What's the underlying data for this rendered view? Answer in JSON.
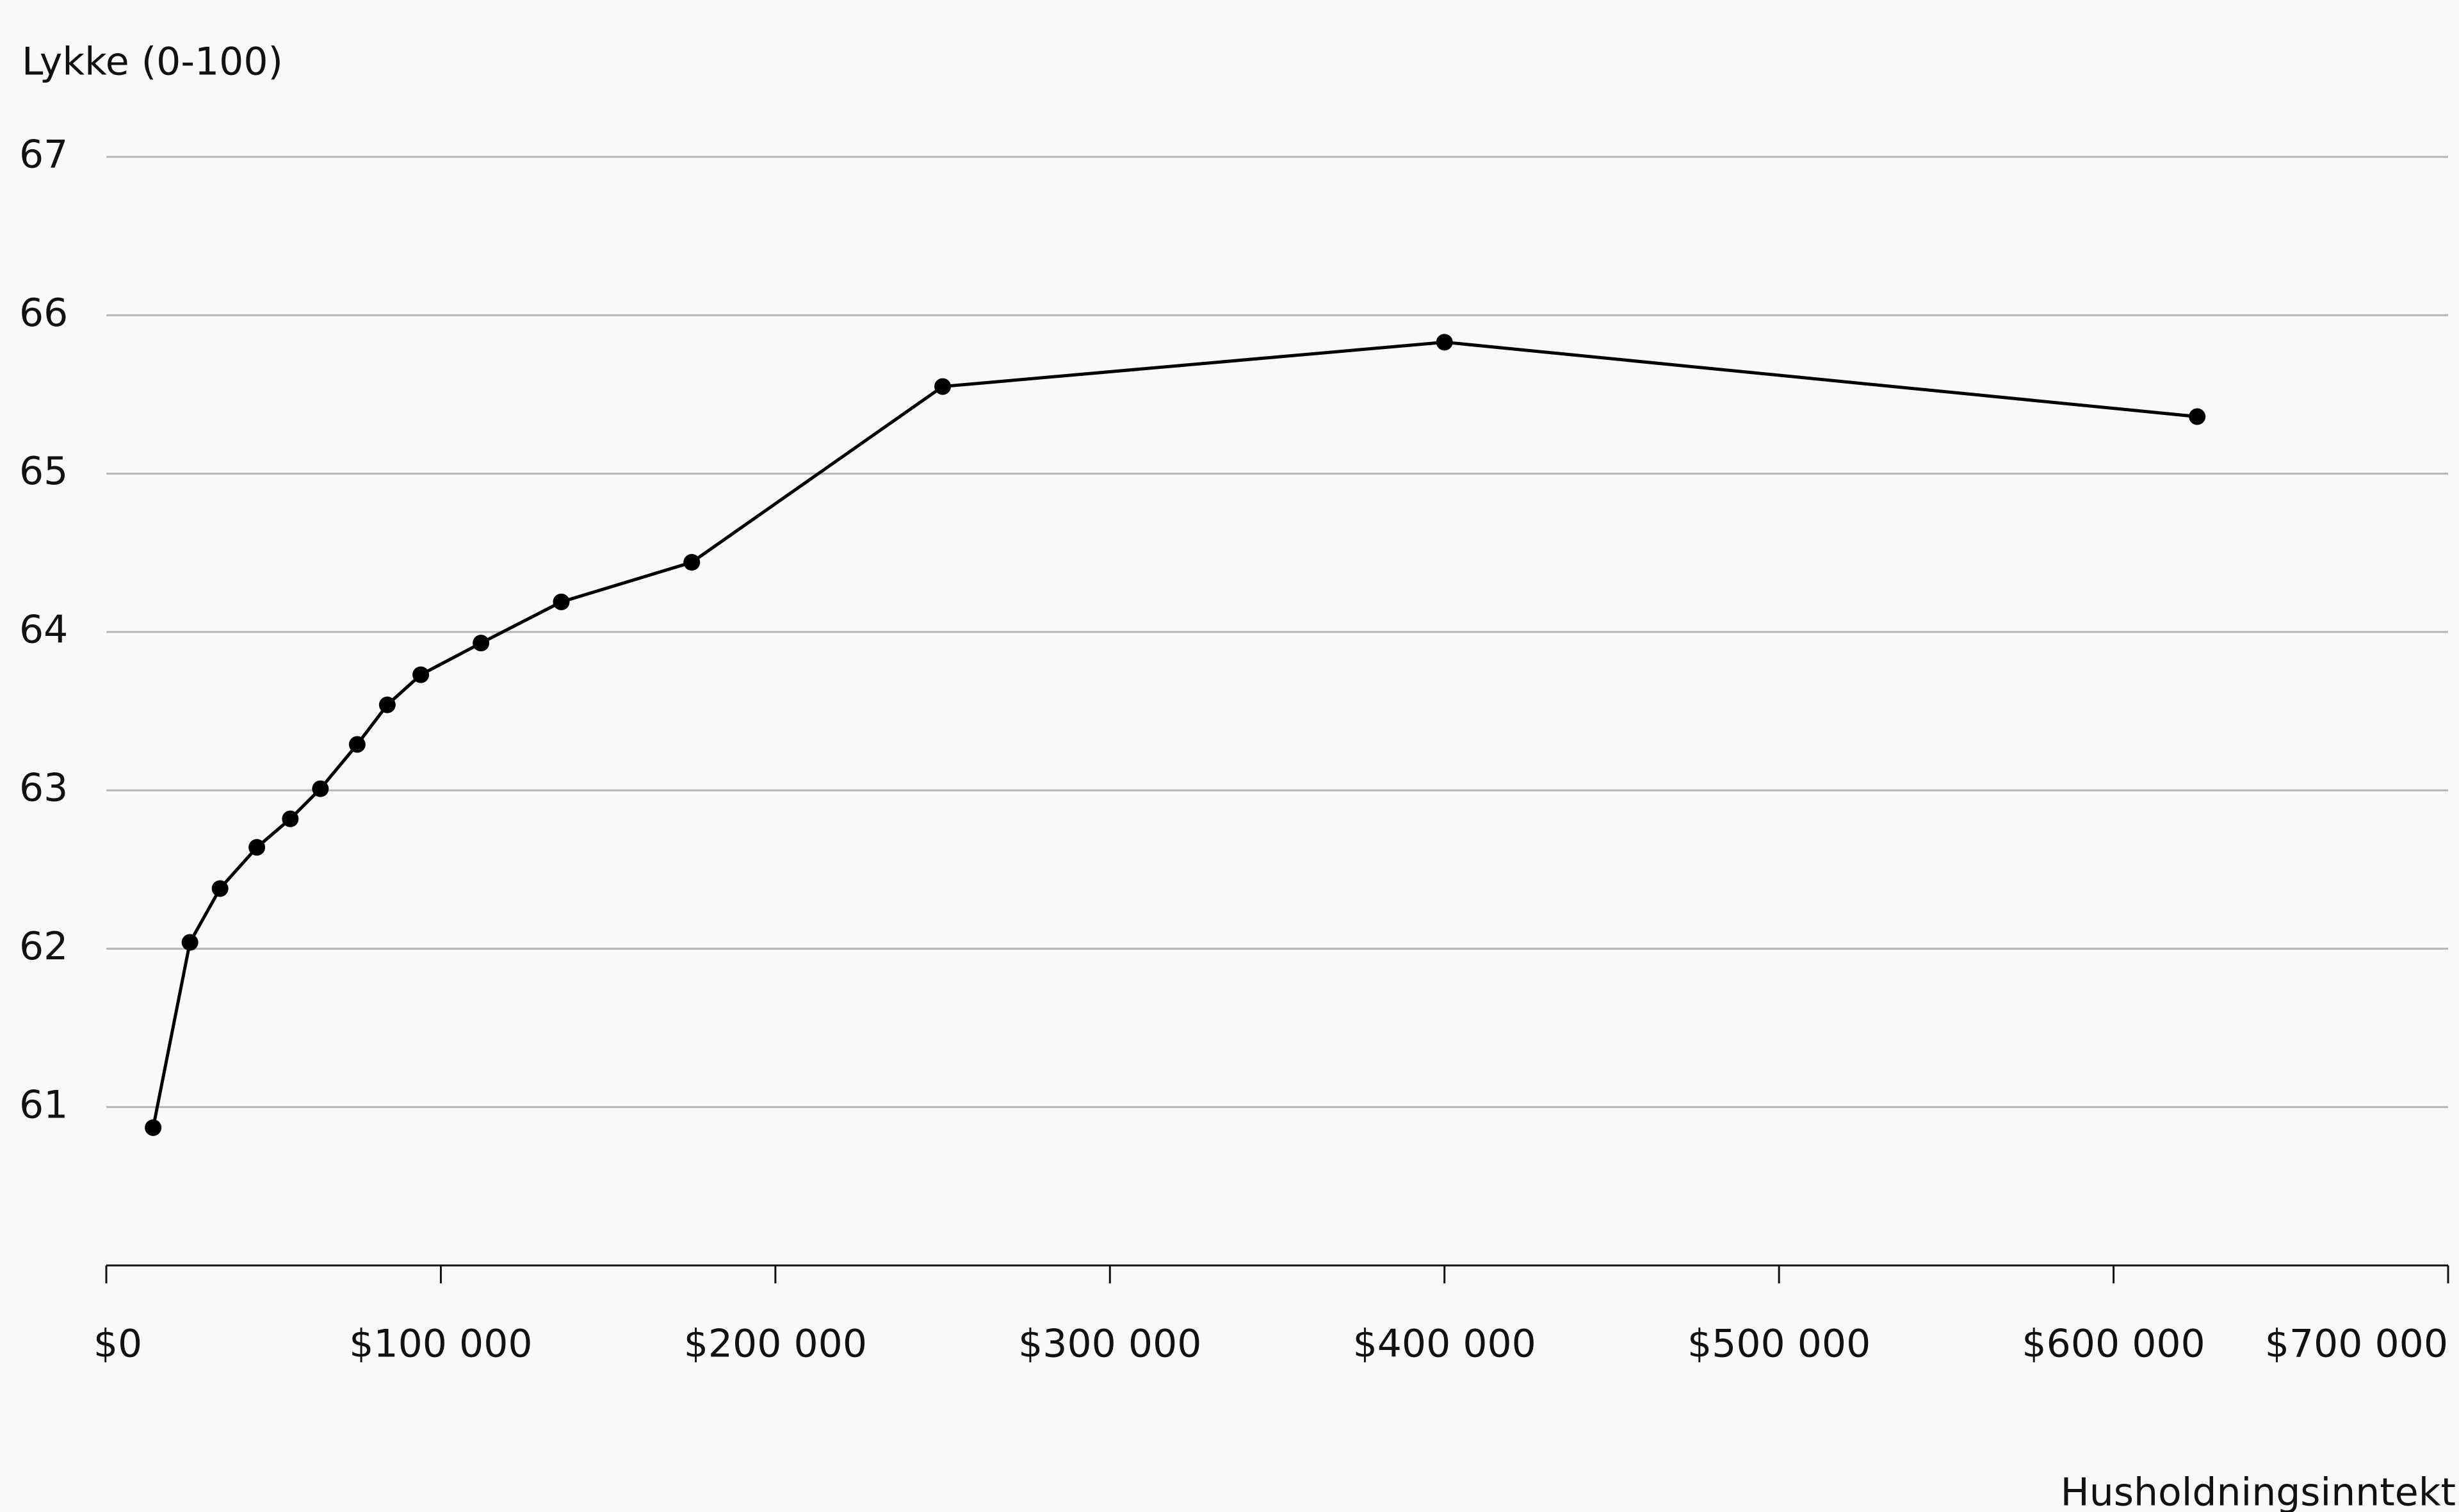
{
  "chart_data": {
    "type": "line",
    "y_label": "Lykke (0-100)",
    "x_label": "Husholdningsinntekt",
    "x": [
      14000,
      25000,
      34000,
      45000,
      55000,
      64000,
      75000,
      84000,
      94000,
      112000,
      136000,
      175000,
      250000,
      400000,
      625000
    ],
    "series": [
      {
        "color": "#000000",
        "values": [
          60.87,
          62.04,
          62.38,
          62.64,
          62.82,
          63.01,
          63.29,
          63.54,
          63.73,
          63.93,
          64.19,
          64.44,
          65.55,
          65.83,
          65.36
        ]
      }
    ],
    "xlim": [
      0,
      700000
    ],
    "xticks": [
      {
        "value": 0,
        "label": "$0"
      },
      {
        "value": 100000,
        "label": "$100 000"
      },
      {
        "value": 200000,
        "label": "$200 000"
      },
      {
        "value": 300000,
        "label": "$300 000"
      },
      {
        "value": 400000,
        "label": "$400 000"
      },
      {
        "value": 500000,
        "label": "$500 000"
      },
      {
        "value": 600000,
        "label": "$600 000"
      },
      {
        "value": 700000,
        "label": "$700 000"
      }
    ],
    "ylim": [
      60,
      67
    ],
    "yticks": [
      61,
      62,
      63,
      64,
      65,
      66,
      67
    ],
    "grid": true
  }
}
